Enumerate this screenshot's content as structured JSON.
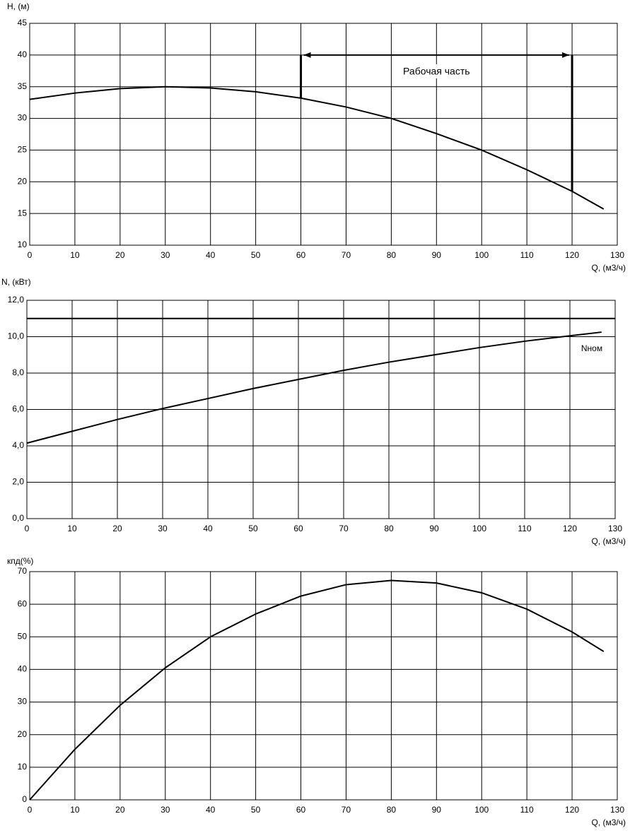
{
  "chart_data": [
    {
      "type": "line",
      "y_label": "H, (м)",
      "x_label": "Q, (м3/ч)",
      "x": [
        0,
        10,
        20,
        30,
        40,
        50,
        60,
        70,
        80,
        90,
        100,
        110,
        120,
        127
      ],
      "series": [
        {
          "color": "#000000",
          "values": [
            33,
            34,
            34.7,
            35,
            34.8,
            34.2,
            33.2,
            31.8,
            30,
            27.6,
            25,
            21.9,
            18.5,
            15.7
          ]
        }
      ],
      "xlim": [
        0,
        130
      ],
      "xticks": [
        0,
        10,
        20,
        30,
        40,
        50,
        60,
        70,
        80,
        90,
        100,
        110,
        120,
        130
      ],
      "ylim": [
        10,
        45
      ],
      "yticks": [
        10,
        15,
        20,
        25,
        30,
        35,
        40,
        45
      ],
      "grid": true,
      "annotation": {
        "text": "Рабочая часть",
        "x": [
          60,
          120
        ],
        "y": 40
      }
    },
    {
      "type": "line",
      "y_label": "N, (кВт)",
      "x_label": "Q, (м3/ч)",
      "x": [
        0,
        10,
        20,
        30,
        40,
        50,
        60,
        70,
        80,
        90,
        100,
        110,
        120,
        127
      ],
      "series": [
        {
          "color": "#000000",
          "values": [
            4.15,
            4.8,
            5.45,
            6.05,
            6.6,
            7.15,
            7.65,
            8.15,
            8.6,
            9.0,
            9.4,
            9.75,
            10.05,
            10.25
          ]
        }
      ],
      "xlim": [
        0,
        130
      ],
      "xticks": [
        0,
        10,
        20,
        30,
        40,
        50,
        60,
        70,
        80,
        90,
        100,
        110,
        120,
        130
      ],
      "ylim": [
        0,
        12
      ],
      "yticks": [
        {
          "value": 0,
          "label": "0,0"
        },
        {
          "value": 2,
          "label": "2,0"
        },
        {
          "value": 4,
          "label": "4,0"
        },
        {
          "value": 6,
          "label": "6,0"
        },
        {
          "value": 8,
          "label": "8,0"
        },
        {
          "value": 10,
          "label": "10,0"
        },
        {
          "value": 12,
          "label": "12,0"
        }
      ],
      "grid": true,
      "reference_line": {
        "label": "Nном",
        "value": 11
      }
    },
    {
      "type": "line",
      "y_label": "кпд(%)",
      "x_label": "Q, (м3/ч)",
      "x": [
        0,
        10,
        20,
        30,
        40,
        50,
        60,
        70,
        80,
        90,
        100,
        110,
        120,
        127
      ],
      "series": [
        {
          "color": "#000000",
          "values": [
            0,
            15.5,
            29,
            40.5,
            50,
            57,
            62.5,
            66,
            67.3,
            66.5,
            63.5,
            58.5,
            51.5,
            45.5
          ]
        }
      ],
      "xlim": [
        0,
        130
      ],
      "xticks": [
        0,
        10,
        20,
        30,
        40,
        50,
        60,
        70,
        80,
        90,
        100,
        110,
        120,
        130
      ],
      "ylim": [
        0,
        70
      ],
      "yticks": [
        0,
        10,
        20,
        30,
        40,
        50,
        60,
        70
      ],
      "grid": true
    }
  ]
}
